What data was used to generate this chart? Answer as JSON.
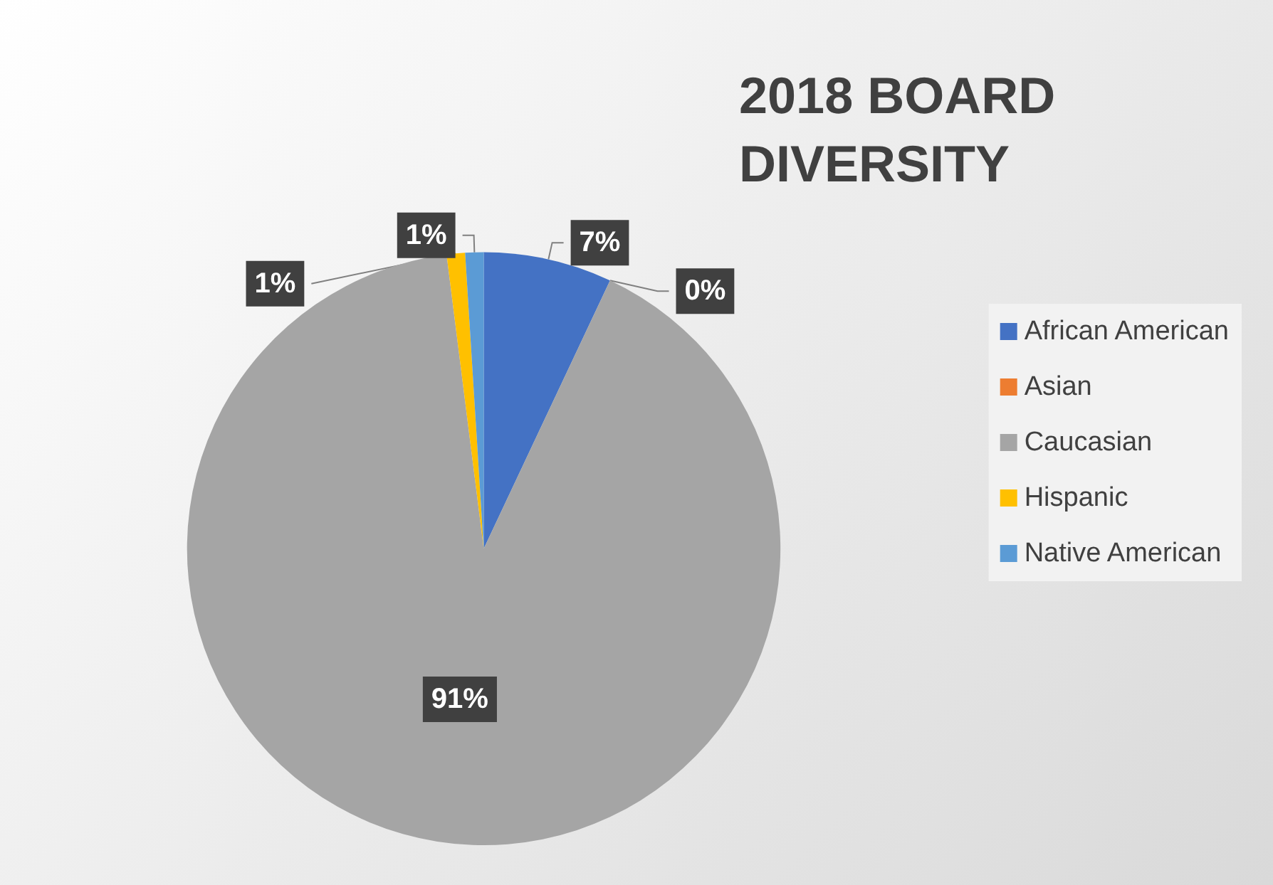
{
  "chart_data": {
    "type": "pie",
    "title": "2018 BOARD DIVERSITY",
    "categories": [
      "African American",
      "Asian",
      "Caucasian",
      "Hispanic",
      "Native American"
    ],
    "values": [
      7,
      0,
      91,
      1,
      1
    ],
    "value_labels": [
      "7%",
      "0%",
      "91%",
      "1%",
      "1%"
    ],
    "colors": [
      "#4472c4",
      "#ed7d31",
      "#a5a5a5",
      "#ffc000",
      "#5b9bd5"
    ],
    "legend": "right"
  }
}
